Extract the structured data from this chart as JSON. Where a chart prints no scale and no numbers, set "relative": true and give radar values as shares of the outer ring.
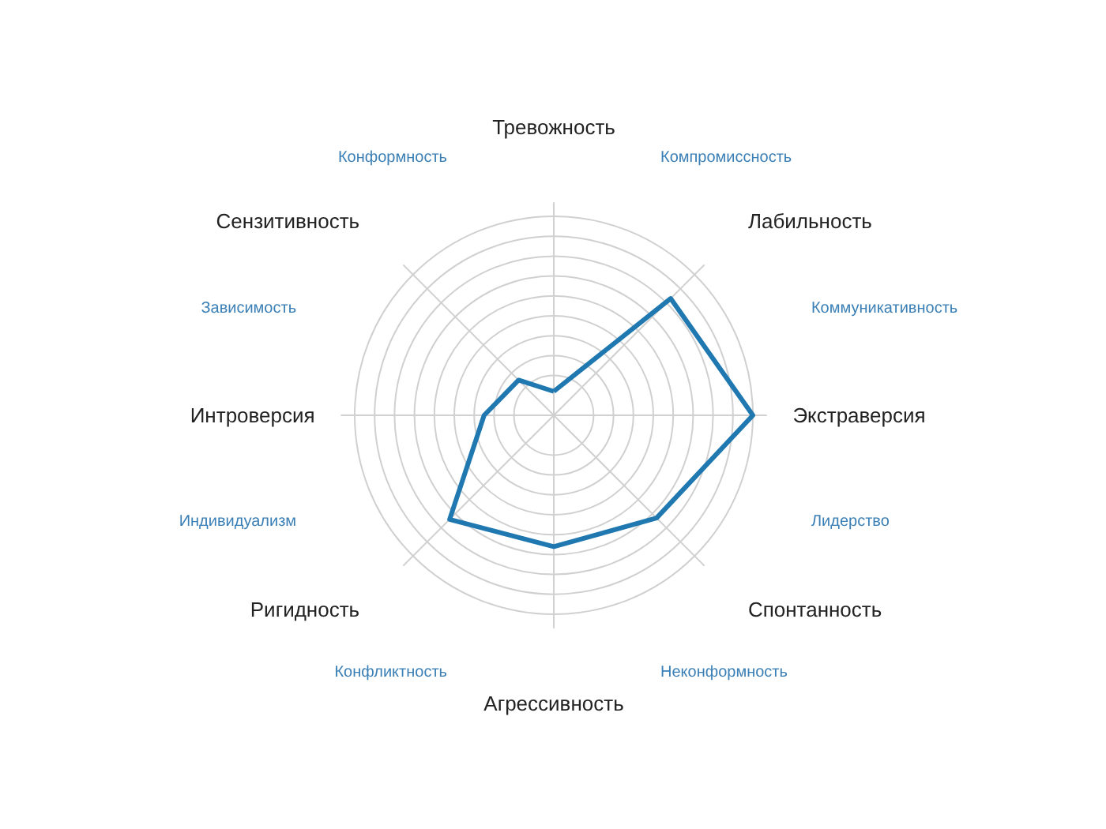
{
  "chart_data": {
    "type": "radar",
    "relative": true,
    "grid": true,
    "categories": [
      "Тревожность",
      "Лабильность",
      "Экстраверсия",
      "Спонтанность",
      "Агрессивность",
      "Ригидность",
      "Интроверсия",
      "Сензитивность"
    ],
    "series": [
      {
        "color": "#1f78b0",
        "values": [
          0.12,
          0.83,
          1.0,
          0.73,
          0.66,
          0.74,
          0.35,
          0.25
        ]
      }
    ],
    "annotations": [
      "Компромиссность",
      "Коммуникативность",
      "Лидерство",
      "Неконформность",
      "Конфликтность",
      "Индивидуализм",
      "Зависимость",
      "Конформность"
    ],
    "marker": "none",
    "line_style": "solid"
  }
}
